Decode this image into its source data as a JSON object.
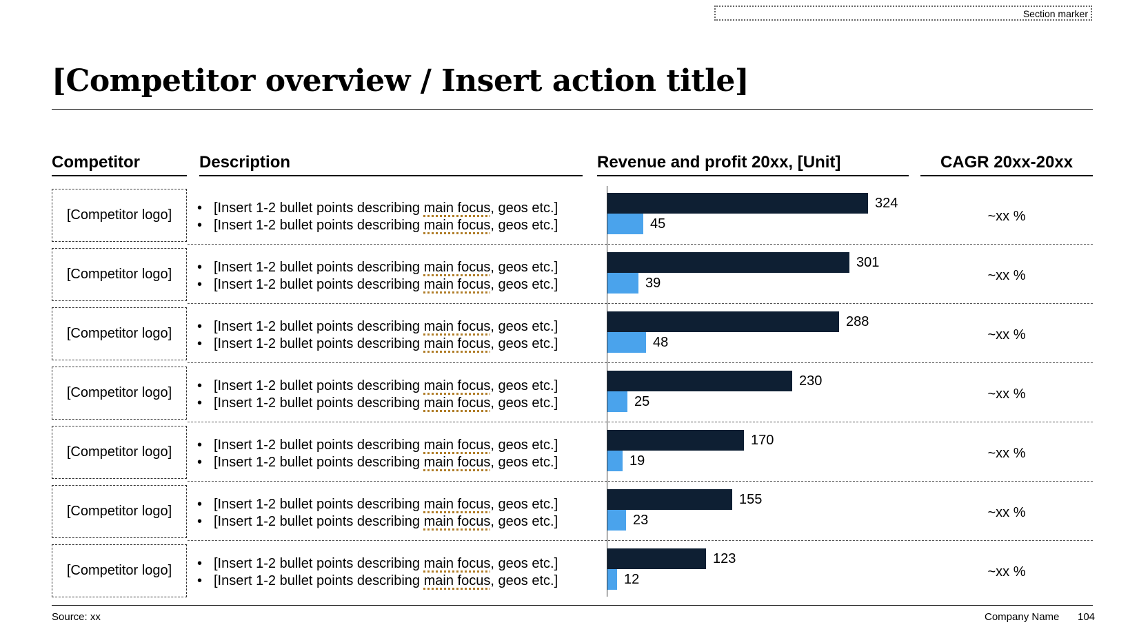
{
  "section_marker": "Section marker",
  "title": "[Competitor overview / Insert action title]",
  "columns": {
    "competitor": "Competitor",
    "description": "Description",
    "chart": "Revenue and profit 20xx, [Unit]",
    "cagr": "CAGR 20xx-20xx"
  },
  "desc_parts": {
    "pre": "[Insert 1-2 bullet points describing ",
    "mid": "main focus",
    "post": ", geos etc.]",
    "bullet": "•"
  },
  "rows": [
    {
      "logo": "[Competitor logo]",
      "cagr": "~xx %"
    },
    {
      "logo": "[Competitor logo]",
      "cagr": "~xx %"
    },
    {
      "logo": "[Competitor logo]",
      "cagr": "~xx %"
    },
    {
      "logo": "[Competitor logo]",
      "cagr": "~xx %"
    },
    {
      "logo": "[Competitor logo]",
      "cagr": "~xx %"
    },
    {
      "logo": "[Competitor logo]",
      "cagr": "~xx %"
    },
    {
      "logo": "[Competitor logo]",
      "cagr": "~xx %"
    }
  ],
  "chart_data": {
    "type": "bar",
    "orientation": "horizontal",
    "title": "Revenue and profit 20xx, [Unit]",
    "series": [
      {
        "values": [
          324,
          301,
          288,
          230,
          170,
          155,
          123
        ],
        "color": "#0e1f33"
      },
      {
        "values": [
          45,
          39,
          48,
          25,
          19,
          23,
          12
        ],
        "color": "#4aa3ec"
      }
    ]
  },
  "footer": {
    "source": "Source: xx",
    "company": "Company Name",
    "page": "104"
  }
}
